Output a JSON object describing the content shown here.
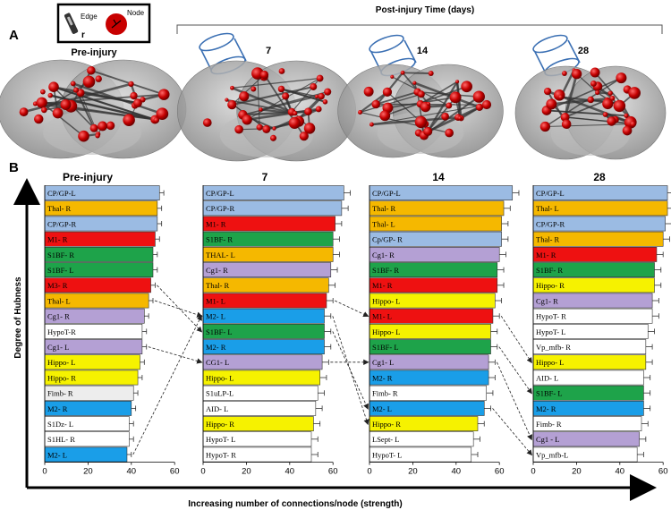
{
  "figure": {
    "panel_a_letter": "A",
    "panel_b_letter": "B",
    "legend": {
      "edge_label": "Edge",
      "edge_sub": "r",
      "node_label": "Node"
    },
    "post_injury_title": "Post-injury Time (days)",
    "brain_titles": [
      "Pre-injury",
      "7",
      "14",
      "28"
    ],
    "y_axis_title": "Degree of Hubness",
    "x_axis_title": "Increasing number of connections/node (strength)"
  },
  "colors": {
    "CP": "#9bbbe3",
    "Thal": "#f5b800",
    "M1": "#ee1111",
    "S1BF": "#1ea34a",
    "Cg1": "#b4a0d4",
    "Hippo": "#f6f200",
    "M2": "#1a9ee8",
    "Fimb": "#ededed",
    "white": "#ffffff"
  },
  "chart_data": [
    {
      "type": "bar",
      "orientation": "horizontal",
      "title": "Pre-injury",
      "xlim": [
        0,
        60
      ],
      "xticks": [
        0,
        20,
        40,
        60
      ],
      "categories": [
        "CP/GP-L",
        "Thal-   R",
        "CP/GP-R",
        "M1-    R",
        "S1BF-  R",
        "S1BF-   L",
        "M3-     R",
        "Thal-   L",
        "Cg1-    R",
        "HypoT-R",
        "Cg1-    L",
        "Hippo- L",
        "Hippo- R",
        "Fimb-   R",
        "M2-     R",
        "S1Dz-   L",
        "S1HL- R",
        "M2-     L"
      ],
      "values": [
        53,
        52,
        52,
        51,
        50,
        50,
        49,
        48,
        46,
        45,
        45,
        44,
        43,
        41,
        40,
        39,
        39,
        38
      ],
      "errors": [
        2,
        2,
        2,
        2,
        2,
        2,
        2,
        2,
        2,
        2,
        2,
        2,
        2,
        2,
        2,
        2,
        2,
        2
      ],
      "colors": [
        "CP",
        "Thal",
        "CP",
        "M1",
        "S1BF",
        "S1BF",
        "M1",
        "Thal",
        "Cg1",
        "white",
        "Cg1",
        "Hippo",
        "Hippo",
        "Fimb",
        "M2",
        "white",
        "white",
        "M2"
      ]
    },
    {
      "type": "bar",
      "orientation": "horizontal",
      "title": "7",
      "xlim": [
        0,
        60
      ],
      "xticks": [
        0,
        20,
        40,
        60
      ],
      "categories": [
        "CP/GP-L",
        "CP/GP-R",
        "M1-     R",
        "S1BF-  R",
        "THAL- L",
        "Cg1-    R",
        "Thal-    R",
        "M1-     L",
        "M2-      L",
        "S1BF-   L",
        "M2-     R",
        "CG1-    L",
        "Hippo- L",
        "S1uLP-L",
        "AID-     L",
        "Hippo- R",
        "HypoT- L",
        "HypoT- R"
      ],
      "values": [
        65,
        64,
        61,
        60,
        60,
        59,
        58,
        57,
        56,
        56,
        56,
        55,
        54,
        53,
        52,
        51,
        50,
        50
      ],
      "errors": [
        3,
        3,
        3,
        3,
        3,
        3,
        3,
        3,
        3,
        3,
        3,
        3,
        3,
        3,
        3,
        3,
        3,
        3
      ],
      "colors": [
        "CP",
        "CP",
        "M1",
        "S1BF",
        "Thal",
        "Cg1",
        "Thal",
        "M1",
        "M2",
        "S1BF",
        "M2",
        "Cg1",
        "Hippo",
        "white",
        "white",
        "Hippo",
        "white",
        "white"
      ]
    },
    {
      "type": "bar",
      "orientation": "horizontal",
      "title": "14",
      "xlim": [
        0,
        60
      ],
      "xticks": [
        0,
        20,
        40,
        60
      ],
      "categories": [
        "CP/GP-L",
        "Thal-   R",
        "Thal-   L",
        "Cp/GP- R",
        "Cg1-    R",
        "S1BF-  R",
        "M1-     R",
        "Hippo-  L",
        "M1-      L",
        "Hippo- L",
        "S1BF-   L",
        "Cg1-     L",
        "M2-     R",
        "Fimb-   R",
        "M2-      L",
        "Hippo- R",
        "LSept-  L",
        "HypoT- L"
      ],
      "values": [
        66,
        62,
        61,
        61,
        60,
        59,
        59,
        58,
        57,
        56,
        56,
        55,
        55,
        54,
        53,
        50,
        48,
        47
      ],
      "errors": [
        3,
        3,
        3,
        3,
        3,
        3,
        3,
        3,
        3,
        3,
        3,
        3,
        3,
        3,
        3,
        3,
        3,
        3
      ],
      "colors": [
        "CP",
        "Thal",
        "Thal",
        "CP",
        "Cg1",
        "S1BF",
        "M1",
        "Hippo",
        "M1",
        "Hippo",
        "S1BF",
        "Cg1",
        "M2",
        "white",
        "M2",
        "Hippo",
        "white",
        "white"
      ]
    },
    {
      "type": "bar",
      "orientation": "horizontal",
      "title": "28",
      "xlim": [
        0,
        60
      ],
      "xticks": [
        0,
        20,
        40,
        60
      ],
      "categories": [
        "CP/GP-L",
        "Thal-   L",
        "CP/GP-R",
        "Thal-   R",
        "M1-     R",
        "S1BF-  R",
        "Hippo-  R",
        "Cg1-     R",
        "HypoT- R",
        "HypoT- L",
        "Vp_mfb-   R",
        "Hippo-  L",
        "AID-     L",
        "S1BF-   L",
        "M2-     R",
        "Fimb-   R",
        "Cg1 -   L",
        "Vp_mfb-L"
      ],
      "values": [
        62,
        62,
        61,
        60,
        57,
        56,
        56,
        55,
        55,
        53,
        52,
        52,
        51,
        51,
        51,
        50,
        49,
        48
      ],
      "errors": [
        3,
        3,
        3,
        3,
        3,
        3,
        3,
        3,
        3,
        3,
        3,
        3,
        3,
        3,
        3,
        3,
        3,
        3
      ],
      "colors": [
        "CP",
        "Thal",
        "CP",
        "Thal",
        "M1",
        "S1BF",
        "Hippo",
        "Cg1",
        "white",
        "white",
        "white",
        "Hippo",
        "white",
        "S1BF",
        "M2",
        "white",
        "Cg1",
        "white"
      ]
    }
  ]
}
